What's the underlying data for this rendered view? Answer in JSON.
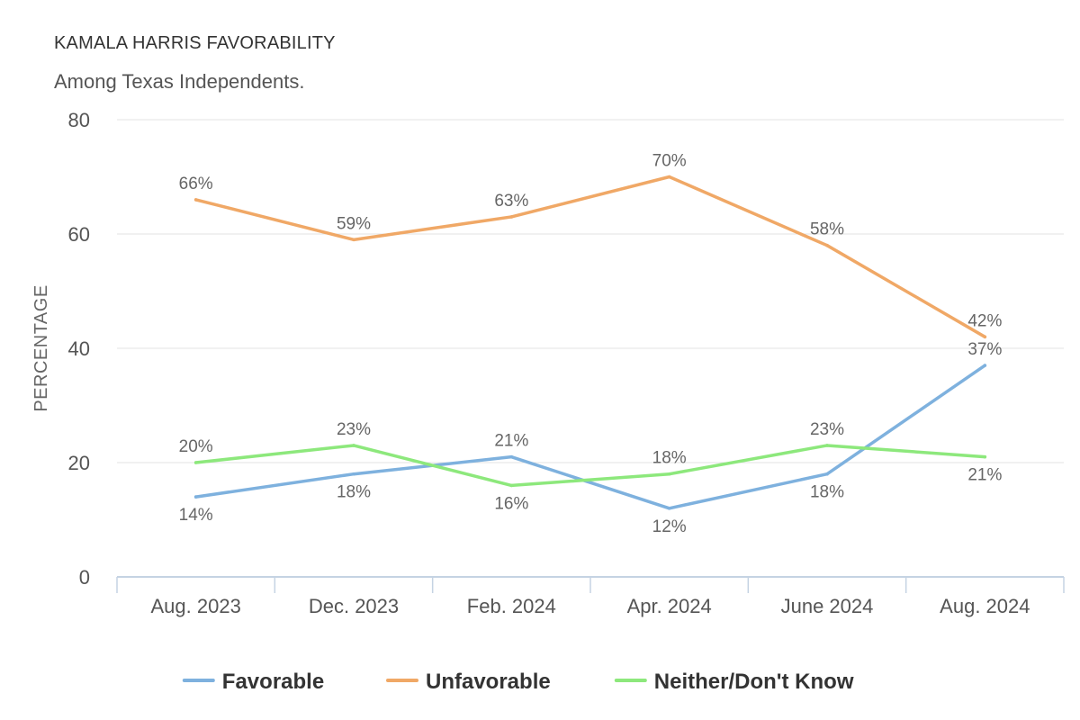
{
  "chart_data": {
    "type": "line",
    "title": "KAMALA HARRIS FAVORABILITY",
    "subtitle": "Among Texas Independents.",
    "ylabel": "PERCENTAGE",
    "xlabel": "",
    "categories": [
      "Aug. 2023",
      "Dec. 2023",
      "Feb. 2024",
      "Apr. 2024",
      "June 2024",
      "Aug. 2024"
    ],
    "ylim": [
      0,
      80
    ],
    "yticks": [
      0,
      20,
      40,
      60,
      80
    ],
    "grid": true,
    "legend_position": "bottom",
    "label_suffix": "%",
    "series": [
      {
        "name": "Favorable",
        "color": "#7eb1de",
        "values": [
          14,
          18,
          21,
          12,
          18,
          37
        ]
      },
      {
        "name": "Unfavorable",
        "color": "#f0a866",
        "values": [
          66,
          59,
          63,
          70,
          58,
          42
        ]
      },
      {
        "name": "Neither/Don't Know",
        "color": "#8de87c",
        "values": [
          20,
          23,
          16,
          18,
          23,
          21
        ]
      }
    ]
  }
}
